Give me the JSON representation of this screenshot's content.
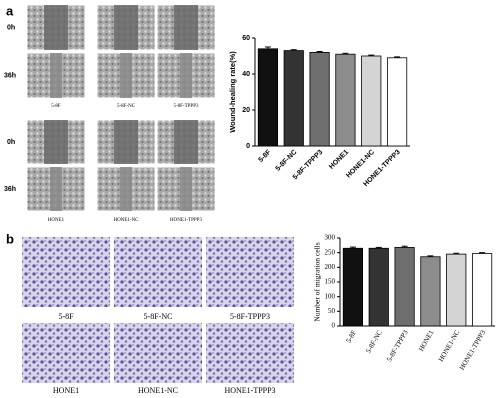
{
  "figure": {
    "panel_labels": [
      "a",
      "b"
    ],
    "wound": {
      "time_labels": [
        "0h",
        "36h"
      ],
      "captions": [
        [
          "5-8F",
          "5-8F-NC",
          "5-8F-TPPP3"
        ],
        [
          "HONE1",
          "HONE1-NC",
          "HONE1-TPPP3"
        ]
      ]
    },
    "transwell": {
      "captions": [
        [
          "5-8F",
          "5-8F-NC",
          "5-8F-TPPP3"
        ],
        [
          "HONE1",
          "HONE1-NC",
          "HONE1-TPPP3"
        ]
      ]
    }
  },
  "chart_data": [
    {
      "type": "bar",
      "ylabel": "Wound-healing rate(%)",
      "categories": [
        "5-8F",
        "5-8F-NC",
        "5-8F-TPPP3",
        "HONE1",
        "HONE1-NC",
        "HONE1-TPPP3"
      ],
      "values": [
        54,
        53,
        52,
        51,
        50,
        49
      ],
      "errors": [
        1,
        0.5,
        0.5,
        0.5,
        0.5,
        0.5
      ],
      "colors": [
        "#111111",
        "#333333",
        "#6e6e6e",
        "#8c8c8c",
        "#d4d4d4",
        "#ffffff"
      ],
      "ylim": [
        0,
        60
      ],
      "yticks": [
        0,
        20,
        40,
        60
      ]
    },
    {
      "type": "bar",
      "ylabel": "Number of migration cells",
      "categories": [
        "5-8F",
        "5-8F-NC",
        "5-8F-TPPP3",
        "HONE1",
        "HONE1-NC",
        "HONE1-TPPP3"
      ],
      "values": [
        265,
        265,
        268,
        236,
        245,
        247
      ],
      "errors": [
        4,
        3,
        4,
        3,
        3,
        3
      ],
      "colors": [
        "#111111",
        "#333333",
        "#6e6e6e",
        "#8c8c8c",
        "#d4d4d4",
        "#ffffff"
      ],
      "ylim": [
        0,
        300
      ],
      "yticks": [
        0,
        50,
        100,
        150,
        200,
        250,
        300
      ]
    }
  ]
}
